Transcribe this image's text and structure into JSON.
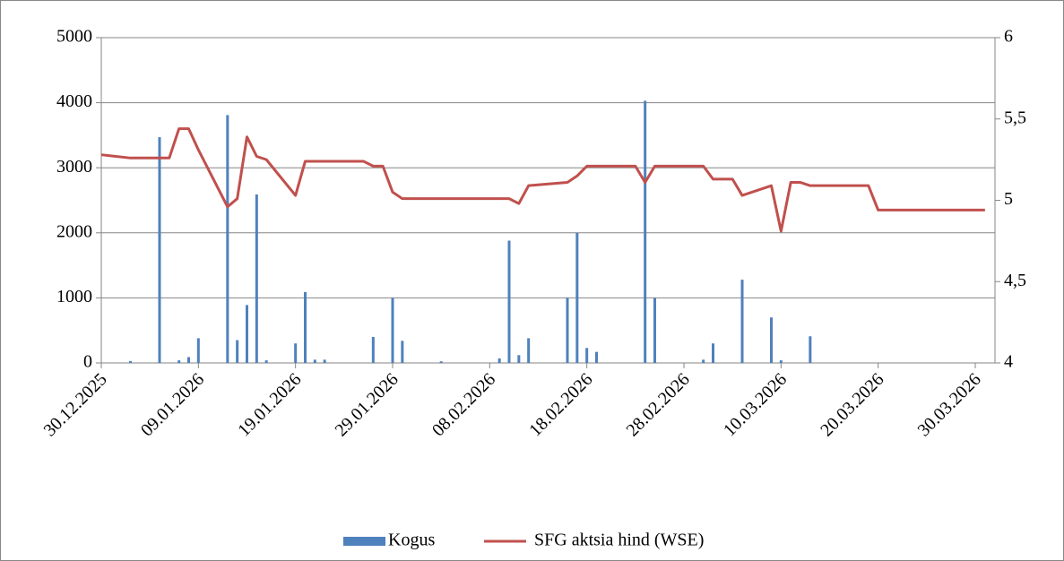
{
  "chart_data": {
    "type": "bar-line",
    "xlim": [
      "30.12.2025",
      "30.03.2026"
    ],
    "xticks": [
      "30.12.2025",
      "09.01.2026",
      "19.01.2026",
      "29.01.2026",
      "08.02.2026",
      "18.02.2026",
      "28.02.2026",
      "10.03.2026",
      "20.03.2026",
      "30.03.2026"
    ],
    "ylim": [
      0,
      5000
    ],
    "yticks": [
      0,
      1000,
      2000,
      3000,
      4000,
      5000
    ],
    "y2lim": [
      4,
      6
    ],
    "y2ticks": [
      4,
      {
        "value": 4.5,
        "label": "4,5"
      },
      5,
      {
        "value": 5.5,
        "label": "5,5"
      },
      6
    ],
    "grid": true,
    "legend": "bottom",
    "series": [
      {
        "name": "Kogus",
        "type": "bar",
        "color": "#4f81bd",
        "x": [
          "02.01.2026",
          "05.01.2026",
          "07.01.2026",
          "08.01.2026",
          "09.01.2026",
          "12.01.2026",
          "13.01.2026",
          "14.01.2026",
          "15.01.2026",
          "16.01.2026",
          "19.01.2026",
          "20.01.2026",
          "21.01.2026",
          "22.01.2026",
          "27.01.2026",
          "29.01.2026",
          "30.01.2026",
          "03.02.2026",
          "09.02.2026",
          "10.02.2026",
          "11.02.2026",
          "12.02.2026",
          "16.02.2026",
          "17.02.2026",
          "18.02.2026",
          "19.02.2026",
          "24.02.2026",
          "25.02.2026",
          "02.03.2026",
          "03.03.2026",
          "06.03.2026",
          "09.03.2026",
          "10.03.2026",
          "13.03.2026"
        ],
        "values": [
          30,
          3470,
          40,
          90,
          380,
          3810,
          350,
          890,
          2590,
          40,
          300,
          1090,
          50,
          50,
          400,
          1000,
          340,
          25,
          70,
          1880,
          120,
          380,
          1000,
          2000,
          230,
          170,
          4030,
          1000,
          50,
          300,
          1280,
          700,
          40,
          410
        ]
      },
      {
        "name": "SFG aktsia hind (WSE)",
        "type": "line",
        "axis": "y2",
        "color": "#c0504d",
        "x": [
          "30.12.2025",
          "02.01.2026",
          "06.01.2026",
          "07.01.2026",
          "08.01.2026",
          "09.01.2026",
          "12.01.2026",
          "13.01.2026",
          "14.01.2026",
          "15.01.2026",
          "16.01.2026",
          "19.01.2026",
          "20.01.2026",
          "26.01.2026",
          "27.01.2026",
          "28.01.2026",
          "29.01.2026",
          "30.01.2026",
          "10.02.2026",
          "11.02.2026",
          "12.02.2026",
          "16.02.2026",
          "17.02.2026",
          "18.02.2026",
          "23.02.2026",
          "24.02.2026",
          "25.02.2026",
          "02.03.2026",
          "03.03.2026",
          "05.03.2026",
          "06.03.2026",
          "09.03.2026",
          "10.03.2026",
          "11.03.2026",
          "12.03.2026",
          "13.03.2026",
          "19.03.2026",
          "20.03.2026",
          "31.03.2026"
        ],
        "values": [
          5.28,
          5.26,
          5.26,
          5.44,
          5.44,
          5.31,
          4.96,
          5.01,
          5.39,
          5.27,
          5.25,
          5.03,
          5.24,
          5.24,
          5.21,
          5.21,
          5.05,
          5.01,
          5.01,
          4.98,
          5.09,
          5.11,
          5.15,
          5.21,
          5.21,
          5.11,
          5.21,
          5.21,
          5.13,
          5.13,
          5.03,
          5.09,
          4.81,
          5.11,
          5.11,
          5.09,
          5.09,
          4.94,
          4.94
        ]
      }
    ]
  }
}
